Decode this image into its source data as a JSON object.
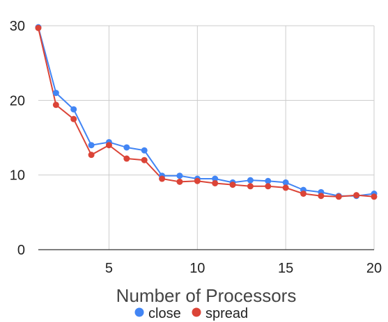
{
  "chart_data": {
    "type": "line",
    "xlabel": "Number of Processors",
    "ylabel": "",
    "xlim": [
      1,
      20
    ],
    "ylim": [
      0,
      30
    ],
    "x_ticks": [
      5,
      10,
      15,
      20
    ],
    "y_ticks": [
      0,
      10,
      20,
      30
    ],
    "grid": true,
    "legend_position": "bottom",
    "x": [
      1,
      2,
      3,
      4,
      5,
      6,
      7,
      8,
      9,
      10,
      11,
      12,
      13,
      14,
      15,
      16,
      17,
      18,
      19,
      20
    ],
    "series": [
      {
        "name": "close",
        "color": "#4285f4",
        "values": [
          29.8,
          21.0,
          18.8,
          14.0,
          14.4,
          13.7,
          13.3,
          9.9,
          9.9,
          9.5,
          9.5,
          9.0,
          9.3,
          9.2,
          9.0,
          8.0,
          7.7,
          7.2,
          7.2,
          7.5
        ]
      },
      {
        "name": "spread",
        "color": "#db4437",
        "values": [
          29.7,
          19.4,
          17.5,
          12.7,
          14.0,
          12.2,
          12.0,
          9.5,
          9.1,
          9.2,
          8.9,
          8.7,
          8.5,
          8.5,
          8.3,
          7.5,
          7.2,
          7.1,
          7.3,
          7.1
        ]
      }
    ]
  }
}
